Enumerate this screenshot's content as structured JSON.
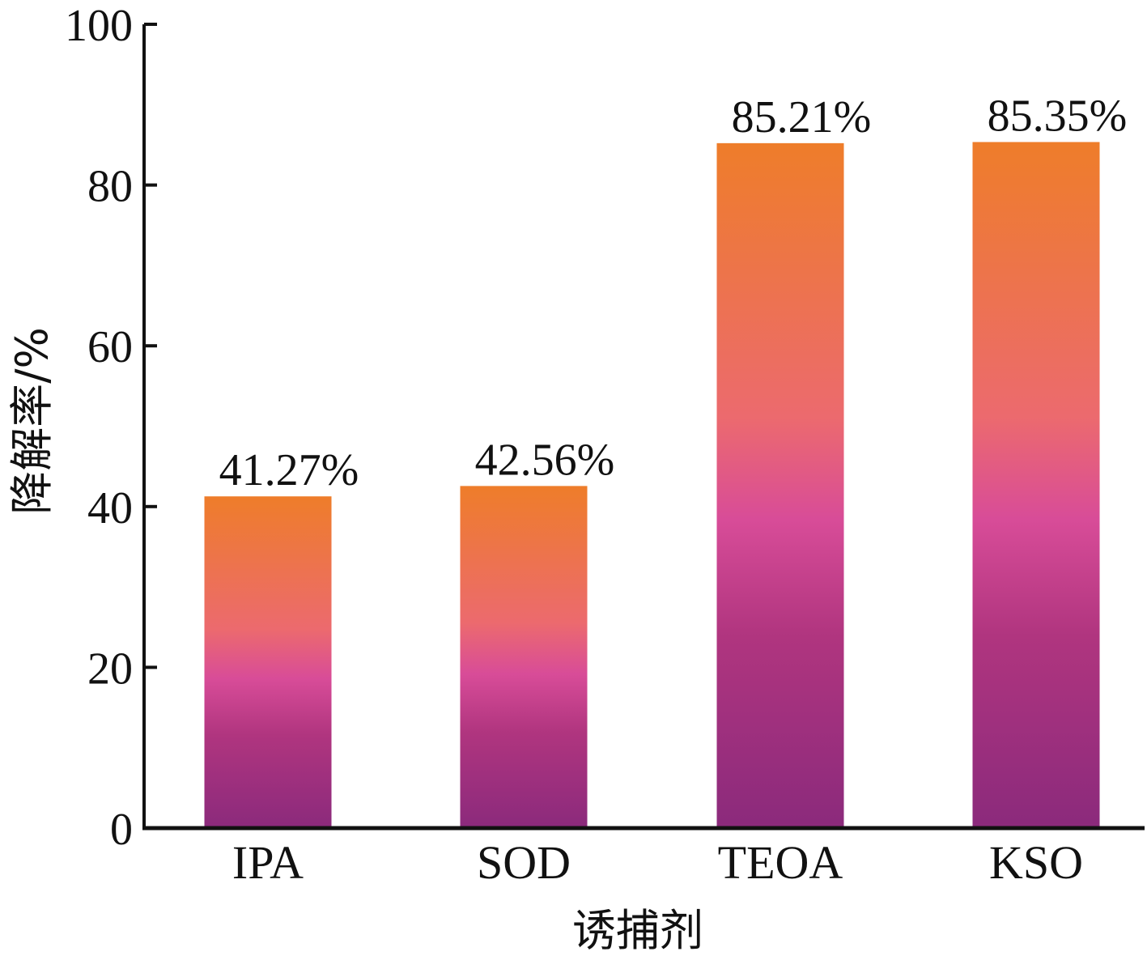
{
  "chart_data": {
    "type": "bar",
    "categories": [
      "IPA",
      "SOD",
      "TEOA",
      "KSO"
    ],
    "values": [
      41.27,
      42.56,
      85.21,
      85.35
    ],
    "value_labels": [
      "41.27%",
      "42.56%",
      "85.21%",
      "85.35%"
    ],
    "title": "",
    "xlabel": "诱捕剂",
    "ylabel": "降解率/%",
    "ylim": [
      0,
      100
    ],
    "yticks": [
      0,
      20,
      40,
      60,
      80,
      100
    ],
    "grid": false,
    "legend": "none",
    "colors": {
      "gradient_top": "#ee7d2a",
      "gradient_mid_upper": "#ec6a6e",
      "gradient_mid": "#d84c98",
      "gradient_mid_lower": "#b0357f",
      "gradient_bottom": "#8b2a7c",
      "axis": "#111111"
    }
  }
}
